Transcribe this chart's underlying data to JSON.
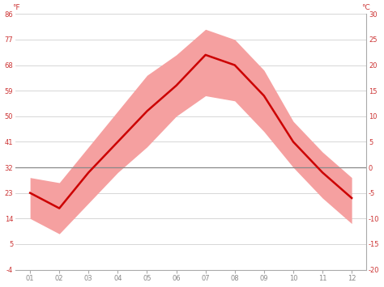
{
  "months": [
    1,
    2,
    3,
    4,
    5,
    6,
    7,
    8,
    9,
    10,
    11,
    12
  ],
  "month_labels": [
    "01",
    "02",
    "03",
    "04",
    "05",
    "06",
    "07",
    "08",
    "09",
    "10",
    "11",
    "12"
  ],
  "avg_temp": [
    -5,
    -8,
    -1,
    5,
    11,
    16,
    22,
    20,
    14,
    5,
    -1,
    -6
  ],
  "max_temp": [
    -2,
    -3,
    4,
    11,
    18,
    22,
    27,
    25,
    19,
    9,
    3,
    -2
  ],
  "min_temp": [
    -10,
    -13,
    -7,
    -1,
    4,
    10,
    14,
    13,
    7,
    0,
    -6,
    -11
  ],
  "y_min": -20,
  "y_max": 30,
  "y_ticks_c": [
    -20,
    -15,
    -10,
    -5,
    0,
    5,
    10,
    15,
    20,
    25,
    30
  ],
  "y_ticks_f_labels": [
    "-4",
    "5",
    "14",
    "23",
    "32",
    "41",
    "50",
    "59",
    "68",
    "77",
    "86"
  ],
  "y_ticks_c_labels": [
    "-20",
    "-15",
    "-10",
    "-5",
    "0",
    "5",
    "10",
    "15",
    "20",
    "25",
    "30"
  ],
  "line_color": "#cc0000",
  "fill_color": "#f5a0a0",
  "zero_line_color": "#888888",
  "grid_color": "#d0d0d0",
  "bg_color": "#ffffff",
  "label_color": "#cc3333",
  "tick_label_color": "#888888",
  "figsize": [
    4.74,
    3.55
  ],
  "dpi": 100
}
